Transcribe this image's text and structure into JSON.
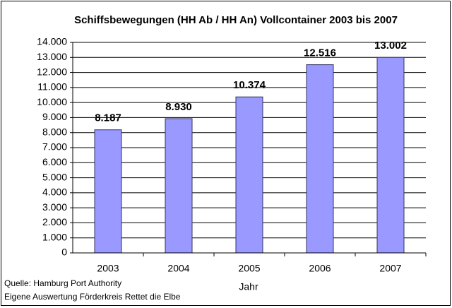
{
  "chart_data": {
    "type": "bar",
    "title": "Schiffsbewegungen (HH Ab / HH An) Vollcontainer  2003 bis 2007",
    "x_label": "Jahr",
    "notes": [
      "Quelle: Hamburg Port Authority",
      "Eigene Auswertung Förderkreis Rettet die Elbe"
    ],
    "categories": [
      "2003",
      "2004",
      "2005",
      "2006",
      "2007"
    ],
    "values": [
      8187,
      8930,
      10374,
      12516,
      13002
    ],
    "value_labels": [
      "8.187",
      "8.930",
      "10.374",
      "12.516",
      "13.002"
    ],
    "color": "#9999ff",
    "ylim": [
      0,
      14000
    ],
    "yticks": [
      0,
      {
        "value": 1000,
        "label": "1.000"
      },
      {
        "value": 2000,
        "label": "2.000"
      },
      {
        "value": 3000,
        "label": "3.000"
      },
      {
        "value": 4000,
        "label": "4.000"
      },
      {
        "value": 5000,
        "label": "5.000"
      },
      {
        "value": 6000,
        "label": "6.000"
      },
      {
        "value": 7000,
        "label": "7.000"
      },
      {
        "value": 8000,
        "label": "8.000"
      },
      {
        "value": 9000,
        "label": "9.000"
      },
      {
        "value": 10000,
        "label": "10.000"
      },
      {
        "value": 11000,
        "label": "11.000"
      },
      {
        "value": 12000,
        "label": "12.000"
      },
      {
        "value": 13000,
        "label": "13.000"
      },
      {
        "value": 14000,
        "label": "14.000"
      }
    ],
    "grid": true
  }
}
